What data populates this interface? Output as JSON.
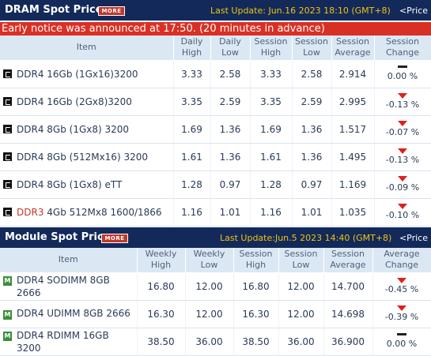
{
  "dram": {
    "title": "DRAM Spot Price",
    "more_label": "MORE",
    "last_update": "Last Update: Jun.16 2023 18:10 (GMT+8)",
    "price_link": "<Price",
    "notice": "Early notice was announced at 17:50. (20 minutes in advance)",
    "headers": {
      "item": "Item",
      "c1a": "Daily",
      "c1b": "High",
      "c2a": "Daily",
      "c2b": "Low",
      "c3a": "Session",
      "c3b": "High",
      "c4a": "Session",
      "c4b": "Low",
      "c5a": "Session",
      "c5b": "Average",
      "c6a": "Session",
      "c6b": "Change"
    },
    "rows": [
      {
        "prefix": "",
        "item": "DDR4 16Gb (1Gx16)3200",
        "c1": "3.33",
        "c2": "2.58",
        "c3": "3.33",
        "c4": "2.58",
        "c5": "2.914",
        "change": "0.00 %",
        "dir": "flat"
      },
      {
        "prefix": "",
        "item": "DDR4 16Gb (2Gx8)3200",
        "c1": "3.35",
        "c2": "2.59",
        "c3": "3.35",
        "c4": "2.59",
        "c5": "2.995",
        "change": "-0.13 %",
        "dir": "down"
      },
      {
        "prefix": "",
        "item": "DDR4 8Gb (1Gx8) 3200",
        "c1": "1.69",
        "c2": "1.36",
        "c3": "1.69",
        "c4": "1.36",
        "c5": "1.517",
        "change": "-0.07 %",
        "dir": "down"
      },
      {
        "prefix": "",
        "item": "DDR4 8Gb (512Mx16) 3200",
        "c1": "1.61",
        "c2": "1.36",
        "c3": "1.61",
        "c4": "1.36",
        "c5": "1.495",
        "change": "-0.13 %",
        "dir": "down"
      },
      {
        "prefix": "",
        "item": "DDR4 8Gb (1Gx8) eTT",
        "c1": "1.28",
        "c2": "0.97",
        "c3": "1.28",
        "c4": "0.97",
        "c5": "1.169",
        "change": "-0.09 %",
        "dir": "down"
      },
      {
        "prefix": "DDR3",
        "item": " 4Gb 512Mx8 1600/1866",
        "c1": "1.16",
        "c2": "1.01",
        "c3": "1.16",
        "c4": "1.01",
        "c5": "1.035",
        "change": "-0.10 %",
        "dir": "down"
      }
    ]
  },
  "module": {
    "title": "Module Spot Price",
    "more_label": "MORE",
    "last_update": "Last Update:Jun.5 2023 14:40 (GMT+8)",
    "price_link": "<Price",
    "headers": {
      "item": "Item",
      "c1a": "Weekly",
      "c1b": "High",
      "c2a": "Weekly",
      "c2b": "Low",
      "c3a": "Session",
      "c3b": "High",
      "c4a": "Session",
      "c4b": "Low",
      "c5a": "Session",
      "c5b": "Average",
      "c6a": "Average",
      "c6b": "Change"
    },
    "rows": [
      {
        "item": "DDR4 SODIMM 8GB 2666",
        "c1": "16.80",
        "c2": "12.00",
        "c3": "16.80",
        "c4": "12.00",
        "c5": "14.700",
        "change": "-0.45 %",
        "dir": "down"
      },
      {
        "item": "DDR4 UDIMM 8GB 2666",
        "c1": "16.30",
        "c2": "12.00",
        "c3": "16.30",
        "c4": "12.00",
        "c5": "14.698",
        "change": "-0.39 %",
        "dir": "down"
      },
      {
        "item": "DDR4 RDIMM 16GB 3200",
        "c1": "38.50",
        "c2": "36.00",
        "c3": "38.50",
        "c4": "36.00",
        "c5": "36.900",
        "change": "0.00 %",
        "dir": "flat"
      }
    ]
  },
  "icons": {
    "dram_row_icon": "chip-icon",
    "module_row_icon": "module-icon",
    "down_indicator": "down-arrow-icon",
    "flat_indicator": "flat-dash-icon"
  },
  "colors": {
    "header_bg": "#13295a",
    "update_text": "#f1c40f",
    "notice_bg": "#d93025",
    "down_arrow": "#e02020",
    "table_header_bg": "#dbe8f4"
  }
}
